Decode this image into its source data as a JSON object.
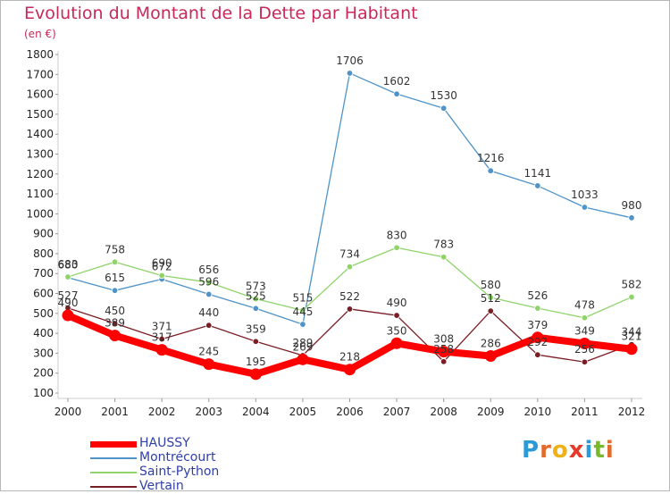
{
  "header": {
    "title": "Evolution du Montant de la Dette par Habitant",
    "unit": "(en €)"
  },
  "logo": {
    "letters": [
      "P",
      "r",
      "o",
      "x",
      "i",
      "t",
      "i"
    ],
    "colors": [
      "#2c9ad6",
      "#e36a2b",
      "#f0b019",
      "#e53a2a",
      "#2c9ad6",
      "#7ab92b",
      "#e36a2b"
    ]
  },
  "chart_data": {
    "type": "line",
    "title": "Evolution du Montant de la Dette par Habitant",
    "ylabel": "(en €)",
    "xlabel": "",
    "x": [
      "2000",
      "2001",
      "2002",
      "2003",
      "2004",
      "2005",
      "2006",
      "2007",
      "2008",
      "2009",
      "2010",
      "2011",
      "2012"
    ],
    "yticks": [
      100,
      200,
      300,
      400,
      500,
      600,
      700,
      800,
      900,
      1000,
      1100,
      1200,
      1300,
      1400,
      1500,
      1600,
      1700,
      1800
    ],
    "ylim": [
      100,
      1800
    ],
    "grid": false,
    "legend": "bottom-left",
    "series": [
      {
        "name": "Montrécourt",
        "color": "#4f93c8",
        "values": [
          680,
          615,
          672,
          596,
          525,
          445,
          1706,
          1602,
          1530,
          1216,
          1141,
          1033,
          980
        ]
      },
      {
        "name": "Saint-Python",
        "color": "#8fd36a",
        "values": [
          683,
          758,
          690,
          656,
          573,
          515,
          734,
          830,
          783,
          580,
          526,
          478,
          582
        ]
      },
      {
        "name": "Vertain",
        "color": "#7a1e26",
        "values": [
          527,
          450,
          371,
          440,
          359,
          289,
          522,
          490,
          258,
          512,
          292,
          256,
          344
        ]
      },
      {
        "name": "HAUSSY",
        "color": "#ff0000",
        "values": [
          490,
          389,
          317,
          245,
          195,
          269,
          218,
          350,
          308,
          286,
          379,
          349,
          321
        ]
      }
    ]
  }
}
